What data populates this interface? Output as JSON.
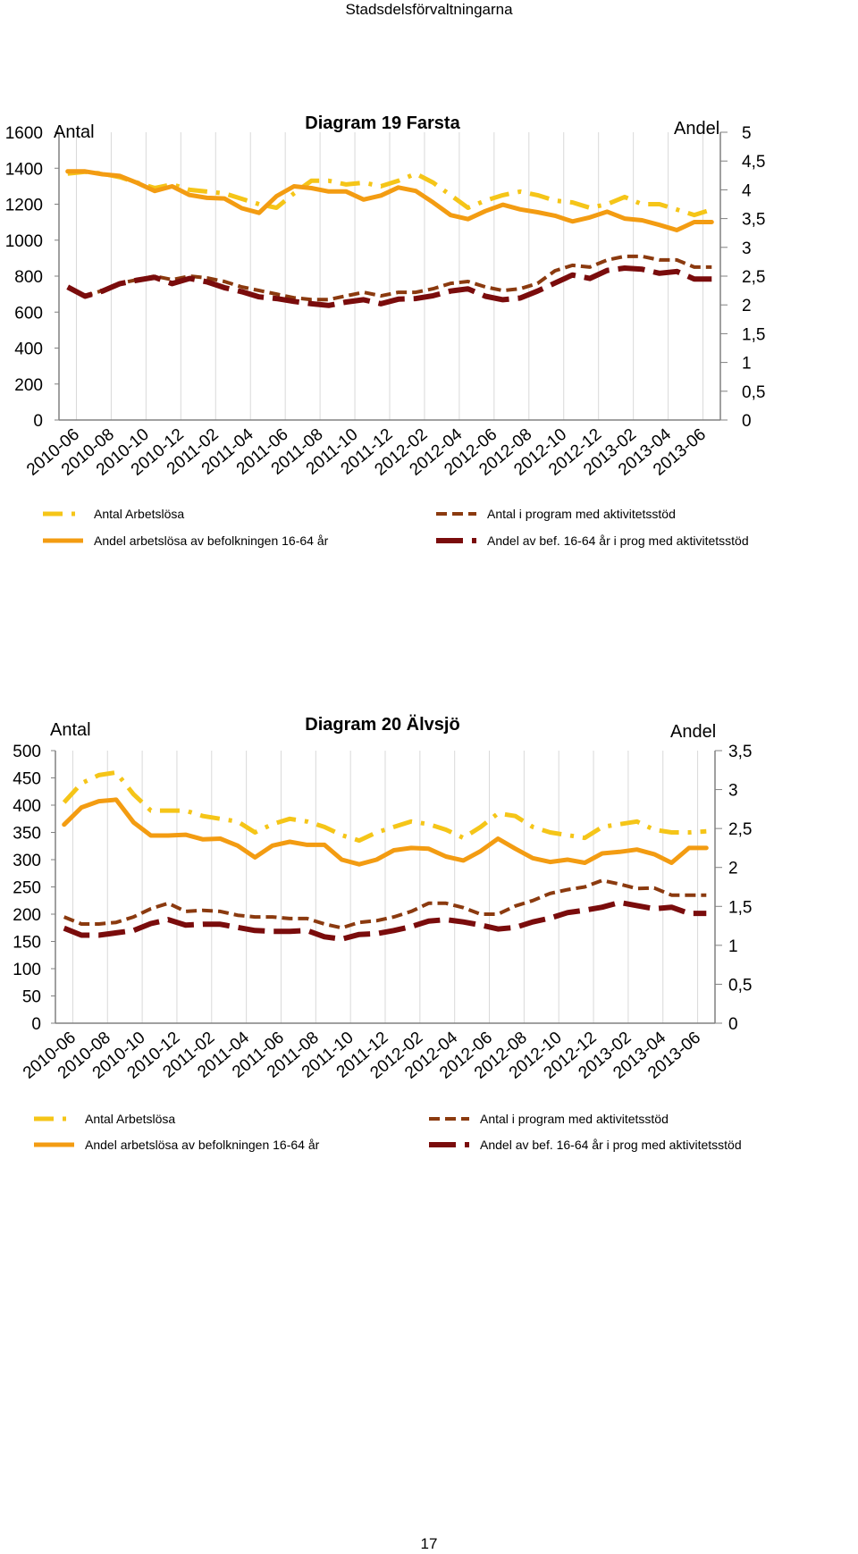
{
  "header": {
    "text": "Stadsdelsförvaltningarna"
  },
  "page_number": "17",
  "colors": {
    "antal_arbetslosa": "#f5c518",
    "andel_arbetslosa": "#f39c12",
    "antal_program": "#8b3a0f",
    "andel_program": "#7a0c0c",
    "gridline": "#d9d9d9",
    "axis": "#808080"
  },
  "chart_data": [
    {
      "type": "line",
      "title": "Diagram 19 Farsta",
      "ylabel": "Antal",
      "y2label": "Andel",
      "ylim": [
        0,
        1600
      ],
      "y2lim": [
        0,
        5
      ],
      "yticks": [
        "0",
        "200",
        "400",
        "600",
        "800",
        "1000",
        "1200",
        "1400",
        "1600"
      ],
      "y2ticks": [
        "0",
        "0,5",
        "1",
        "1,5",
        "2",
        "2,5",
        "3",
        "3,5",
        "4",
        "4,5",
        "5"
      ],
      "categories": [
        "2010-06",
        "2010-07",
        "2010-08",
        "2010-09",
        "2010-10",
        "2010-11",
        "2010-12",
        "2011-01",
        "2011-02",
        "2011-03",
        "2011-04",
        "2011-05",
        "2011-06",
        "2011-07",
        "2011-08",
        "2011-09",
        "2011-10",
        "2011-11",
        "2011-12",
        "2012-01",
        "2012-02",
        "2012-03",
        "2012-04",
        "2012-05",
        "2012-06",
        "2012-07",
        "2012-08",
        "2012-09",
        "2012-10",
        "2012-11",
        "2012-12",
        "2013-01",
        "2013-02",
        "2013-03",
        "2013-04",
        "2013-05",
        "2013-06",
        "2013-07"
      ],
      "xticks": [
        "2010-06",
        "2010-08",
        "2010-10",
        "2010-12",
        "2011-02",
        "2011-04",
        "2011-06",
        "2011-08",
        "2011-10",
        "2011-12",
        "2012-02",
        "2012-04",
        "2012-06",
        "2012-08",
        "2012-10",
        "2012-12",
        "2013-02",
        "2013-04",
        "2013-06"
      ],
      "series": [
        {
          "name": "Antal Arbetslösa",
          "axis": "left",
          "style": "dashdot",
          "color": "#f5c518",
          "values": [
            1370,
            1380,
            1370,
            1350,
            1320,
            1290,
            1310,
            1280,
            1270,
            1260,
            1230,
            1200,
            1180,
            1260,
            1330,
            1330,
            1310,
            1320,
            1300,
            1330,
            1370,
            1320,
            1250,
            1180,
            1220,
            1250,
            1270,
            1250,
            1220,
            1210,
            1180,
            1200,
            1240,
            1200,
            1200,
            1170,
            1140,
            1170
          ]
        },
        {
          "name": "Andel arbetslösa av befolkningen 16-64 år",
          "axis": "right",
          "style": "solid",
          "color": "#f39c12",
          "values": [
            4.32,
            4.32,
            4.27,
            4.24,
            4.12,
            3.98,
            4.06,
            3.91,
            3.86,
            3.85,
            3.68,
            3.6,
            3.89,
            4.06,
            4.03,
            3.97,
            3.97,
            3.83,
            3.9,
            4.04,
            3.98,
            3.78,
            3.56,
            3.49,
            3.63,
            3.74,
            3.66,
            3.61,
            3.55,
            3.45,
            3.52,
            3.62,
            3.5,
            3.47,
            3.39,
            3.3,
            3.44,
            3.44
          ]
        },
        {
          "name": "Antal i program med aktivitetsstöd",
          "axis": "left",
          "style": "dashed",
          "color": "#8b3a0f",
          "values": [
            735,
            690,
            720,
            760,
            780,
            800,
            780,
            800,
            790,
            770,
            740,
            720,
            700,
            680,
            670,
            670,
            690,
            710,
            690,
            710,
            710,
            730,
            760,
            770,
            740,
            720,
            730,
            760,
            830,
            860,
            850,
            890,
            910,
            910,
            890,
            890,
            850,
            850
          ]
        },
        {
          "name": "Andel av bef. 16-64 år i prog med aktivitetsstöd",
          "axis": "right",
          "style": "longdash",
          "color": "#7a0c0c",
          "values": [
            2.31,
            2.15,
            2.24,
            2.37,
            2.43,
            2.48,
            2.37,
            2.46,
            2.4,
            2.3,
            2.23,
            2.14,
            2.11,
            2.06,
            2.02,
            1.99,
            2.05,
            2.09,
            2.02,
            2.1,
            2.11,
            2.16,
            2.24,
            2.28,
            2.15,
            2.09,
            2.12,
            2.24,
            2.38,
            2.52,
            2.46,
            2.6,
            2.64,
            2.62,
            2.55,
            2.58,
            2.45,
            2.45
          ]
        }
      ]
    },
    {
      "type": "line",
      "title": "Diagram 20 Älvsjö",
      "ylabel": "Antal",
      "y2label": "Andel",
      "ylim": [
        0,
        500
      ],
      "y2lim": [
        0,
        3.5
      ],
      "yticks": [
        "0",
        "50",
        "100",
        "150",
        "200",
        "250",
        "300",
        "350",
        "400",
        "450",
        "500"
      ],
      "y2ticks": [
        "0",
        "0,5",
        "1",
        "1,5",
        "2",
        "2,5",
        "3",
        "3,5"
      ],
      "categories": [
        "2010-06",
        "2010-07",
        "2010-08",
        "2010-09",
        "2010-10",
        "2010-11",
        "2010-12",
        "2011-01",
        "2011-02",
        "2011-03",
        "2011-04",
        "2011-05",
        "2011-06",
        "2011-07",
        "2011-08",
        "2011-09",
        "2011-10",
        "2011-11",
        "2011-12",
        "2012-01",
        "2012-02",
        "2012-03",
        "2012-04",
        "2012-05",
        "2012-06",
        "2012-07",
        "2012-08",
        "2012-09",
        "2012-10",
        "2012-11",
        "2012-12",
        "2013-01",
        "2013-02",
        "2013-03",
        "2013-04",
        "2013-05",
        "2013-06",
        "2013-07"
      ],
      "xticks": [
        "2010-06",
        "2010-08",
        "2010-10",
        "2010-12",
        "2011-02",
        "2011-04",
        "2011-06",
        "2011-08",
        "2011-10",
        "2011-12",
        "2012-02",
        "2012-04",
        "2012-06",
        "2012-08",
        "2012-10",
        "2012-12",
        "2013-02",
        "2013-04",
        "2013-06"
      ],
      "series": [
        {
          "name": "Antal Arbetslösa",
          "axis": "left",
          "style": "dashdot",
          "color": "#f5c518",
          "values": [
            405,
            440,
            455,
            460,
            420,
            390,
            390,
            390,
            380,
            375,
            370,
            350,
            365,
            375,
            370,
            360,
            345,
            335,
            350,
            360,
            370,
            365,
            355,
            340,
            360,
            385,
            380,
            360,
            350,
            345,
            340,
            360,
            365,
            370,
            355,
            350,
            350,
            352
          ]
        },
        {
          "name": "Andel arbetslösa av befolkningen 16-64 år",
          "axis": "right",
          "style": "solid",
          "color": "#f39c12",
          "values": [
            2.55,
            2.77,
            2.85,
            2.87,
            2.58,
            2.41,
            2.41,
            2.42,
            2.36,
            2.37,
            2.28,
            2.13,
            2.28,
            2.33,
            2.29,
            2.29,
            2.1,
            2.04,
            2.1,
            2.22,
            2.25,
            2.24,
            2.14,
            2.09,
            2.21,
            2.37,
            2.24,
            2.12,
            2.07,
            2.1,
            2.06,
            2.18,
            2.2,
            2.23,
            2.17,
            2.06,
            2.25,
            2.25
          ]
        },
        {
          "name": "Antal i program med aktivitetsstöd",
          "axis": "left",
          "style": "dashed",
          "color": "#8b3a0f",
          "values": [
            195,
            182,
            182,
            185,
            195,
            210,
            220,
            205,
            207,
            205,
            198,
            195,
            195,
            192,
            192,
            182,
            175,
            185,
            188,
            195,
            205,
            220,
            220,
            212,
            200,
            200,
            215,
            225,
            238,
            245,
            250,
            262,
            255,
            247,
            248,
            235,
            235,
            235
          ]
        },
        {
          "name": "Andel av bef. 16-64 år i prog med aktivitetsstöd",
          "axis": "right",
          "style": "longdash",
          "color": "#7a0c0c",
          "values": [
            1.22,
            1.13,
            1.13,
            1.16,
            1.19,
            1.28,
            1.33,
            1.26,
            1.27,
            1.27,
            1.23,
            1.19,
            1.18,
            1.18,
            1.19,
            1.11,
            1.08,
            1.14,
            1.15,
            1.19,
            1.24,
            1.31,
            1.33,
            1.3,
            1.26,
            1.21,
            1.23,
            1.3,
            1.35,
            1.42,
            1.45,
            1.49,
            1.55,
            1.51,
            1.47,
            1.49,
            1.41,
            1.41
          ]
        }
      ]
    }
  ]
}
